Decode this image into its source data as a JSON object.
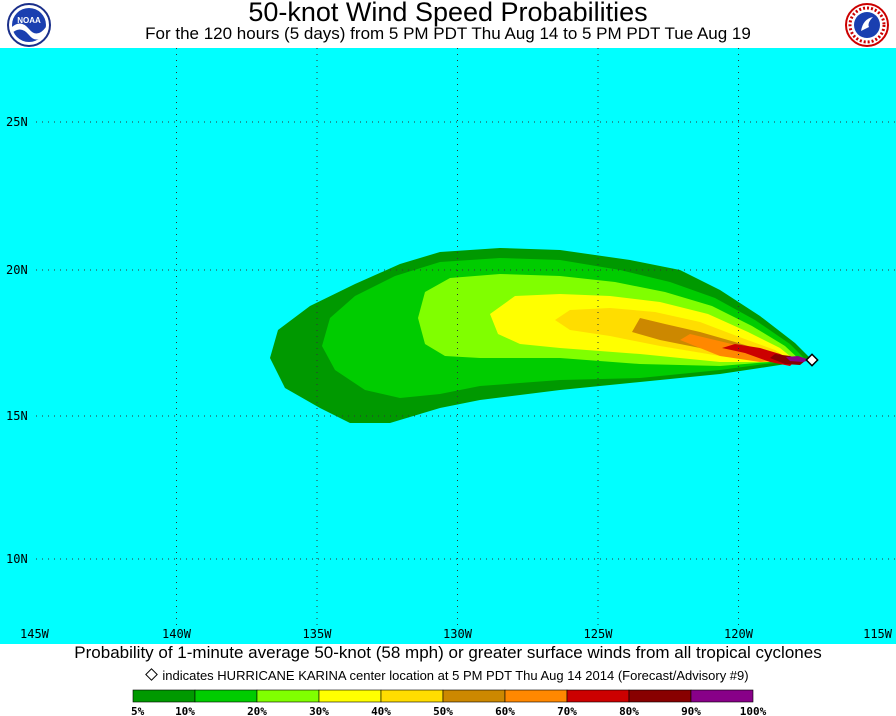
{
  "header": {
    "title": "50-knot Wind Speed Probabilities",
    "subtitle": "For the 120 hours (5 days) from 5 PM PDT Thu Aug 14 to 5 PM PDT Tue Aug 19",
    "left_logo": "noaa-logo",
    "right_logo": "national-weather-service-logo"
  },
  "map": {
    "ocean_color": "#00FFFF",
    "grid": "dotted",
    "longitude_labels": [
      "145W",
      "140W",
      "135W",
      "130W",
      "125W",
      "120W",
      "115W"
    ],
    "latitude_labels": [
      "25N",
      "20N",
      "15N",
      "10N"
    ],
    "longitude_range": [
      -145,
      -115
    ],
    "latitude_range": [
      7.5,
      27.5
    ],
    "storm_center": {
      "lon": -117.4,
      "lat": 17.0,
      "name": "HURRICANE KARINA"
    }
  },
  "footer": {
    "description": "Probability of 1-minute average 50-knot (58 mph) or greater surface winds from all tropical cyclones",
    "marker_note": "indicates HURRICANE KARINA center location at 5 PM PDT Thu Aug 14 2014 (Forecast/Advisory #9)"
  },
  "legend": {
    "labels": [
      "5%",
      "10%",
      "20%",
      "30%",
      "40%",
      "50%",
      "60%",
      "70%",
      "80%",
      "90%",
      "100%"
    ],
    "colors": [
      "#009900",
      "#00CC00",
      "#80FF00",
      "#FFFF00",
      "#FFDD00",
      "#CC8800",
      "#FF8800",
      "#CC0000",
      "#880000",
      "#880088"
    ]
  }
}
